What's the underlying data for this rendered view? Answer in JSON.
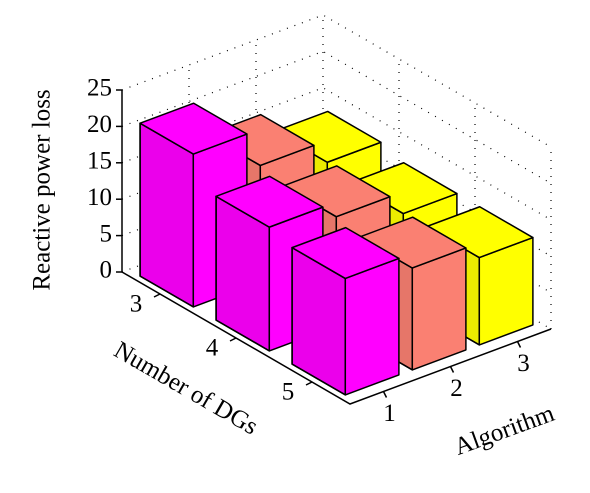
{
  "chart_data": {
    "type": "bar3d",
    "zlabel": "Reactive power loss",
    "xlabel": "Number of DGs",
    "ylabel": "Algorithm",
    "categories": [
      "3",
      "4",
      "5"
    ],
    "series": [
      {
        "name": "1",
        "color": "#ff00ff",
        "values": [
          21,
          17,
          16
        ]
      },
      {
        "name": "2",
        "color": "#fa8072",
        "values": [
          16,
          15,
          14
        ]
      },
      {
        "name": "3",
        "color": "#ffff00",
        "values": [
          13,
          12,
          12
        ]
      }
    ],
    "zlim": [
      0,
      25
    ],
    "zticks": [
      0,
      5,
      10,
      15,
      20,
      25
    ],
    "grid": true
  }
}
